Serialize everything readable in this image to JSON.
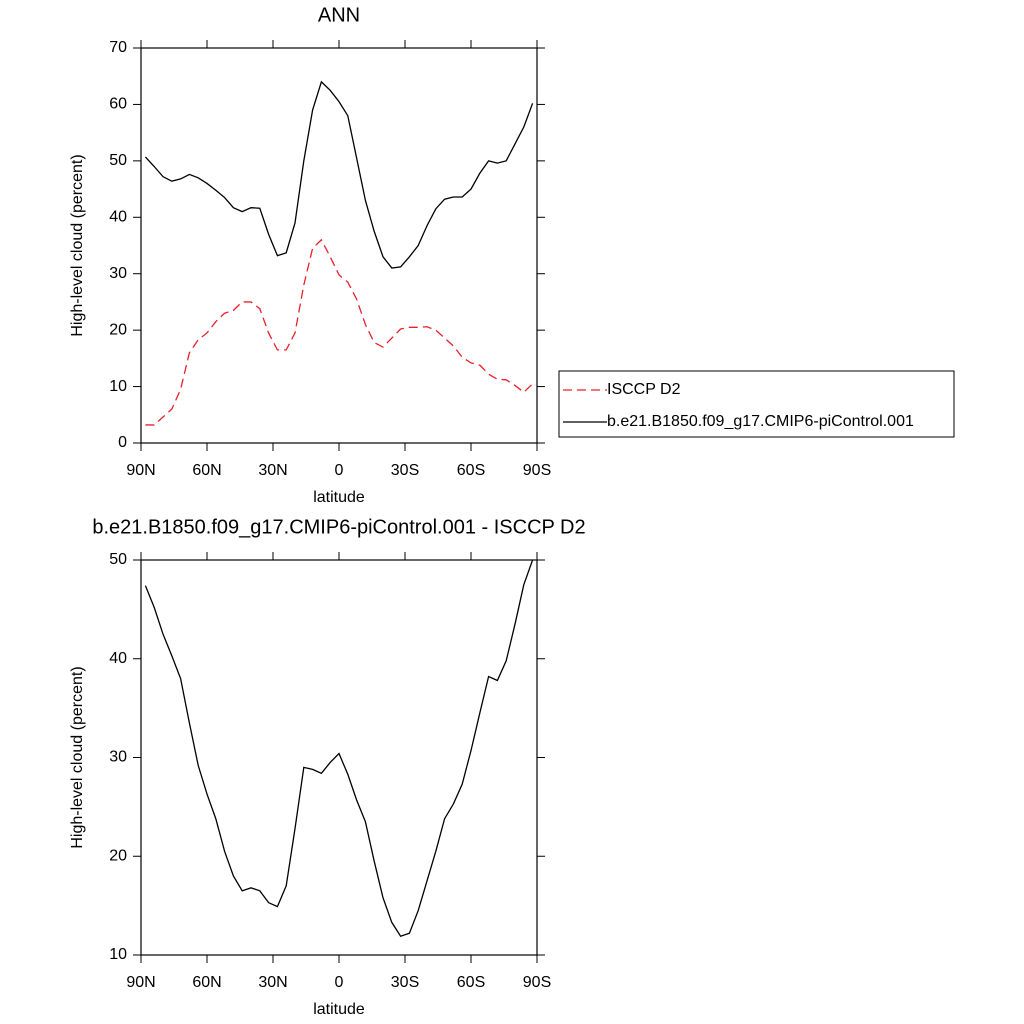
{
  "chart_data": [
    {
      "type": "line",
      "title": "ANN",
      "xlabel": "latitude",
      "ylabel": "High-level cloud (percent)",
      "x": [
        88,
        84,
        80,
        76,
        72,
        68,
        64,
        60,
        56,
        52,
        48,
        44,
        40,
        36,
        32,
        28,
        24,
        20,
        16,
        12,
        8,
        4,
        0,
        -4,
        -8,
        -12,
        -16,
        -20,
        -24,
        -28,
        -32,
        -36,
        -40,
        -44,
        -48,
        -52,
        -56,
        -60,
        -64,
        -68,
        -72,
        -76,
        -80,
        -84,
        -88
      ],
      "series": [
        {
          "name": "ISCCP D2",
          "color": "#e8202a",
          "line_style": "dashed",
          "values": [
            3.2,
            3.2,
            4.6,
            6.0,
            9.5,
            16,
            18.3,
            19.5,
            21.5,
            23,
            23.5,
            25,
            25,
            23.8,
            19.5,
            16.5,
            16.5,
            19.5,
            28,
            34.5,
            36,
            33,
            29.8,
            28.5,
            25.5,
            21,
            17.8,
            17,
            18.6,
            20.2,
            20.5,
            20.5,
            20.6,
            20,
            18.6,
            17.2,
            15.2,
            14.2,
            13.8,
            12.2,
            11.3,
            11.2,
            10.2,
            9,
            10.5
          ]
        },
        {
          "name": "b.e21.B1850.f09_g17.CMIP6-piControl.001",
          "color": "#000000",
          "line_style": "solid",
          "values": [
            50.7,
            49.0,
            47.2,
            46.4,
            46.8,
            47.6,
            47.0,
            46.0,
            44.8,
            43.5,
            41.7,
            41.0,
            41.7,
            41.6,
            37,
            33.2,
            33.7,
            39,
            50,
            59,
            64,
            62.5,
            60.5,
            58,
            50.5,
            43,
            37.5,
            33,
            31,
            31.2,
            33,
            35,
            38.5,
            41.5,
            43.2,
            43.6,
            43.6,
            45,
            47.8,
            50,
            49.6,
            50,
            53,
            56,
            60.2
          ]
        }
      ],
      "xlim": [
        90,
        -90
      ],
      "xticks": [
        {
          "value": 90,
          "label": "90N"
        },
        {
          "value": 60,
          "label": "60N"
        },
        {
          "value": 30,
          "label": "30N"
        },
        0,
        {
          "value": -30,
          "label": "30S"
        },
        {
          "value": -60,
          "label": "60S"
        },
        {
          "value": -90,
          "label": "90S"
        }
      ],
      "ylim": [
        0,
        70
      ],
      "yticks": [
        0,
        10,
        20,
        30,
        40,
        50,
        60,
        70
      ],
      "legend": "right"
    },
    {
      "type": "line",
      "title": "b.e21.B1850.f09_g17.CMIP6-piControl.001 - ISCCP D2",
      "xlabel": "latitude",
      "ylabel": "High-level cloud (percent)",
      "x": [
        88,
        84,
        80,
        76,
        72,
        68,
        64,
        60,
        56,
        52,
        48,
        44,
        40,
        36,
        32,
        28,
        24,
        20,
        16,
        12,
        8,
        4,
        0,
        -4,
        -8,
        -12,
        -16,
        -20,
        -24,
        -28,
        -32,
        -36,
        -40,
        -44,
        -48,
        -52,
        -56,
        -60,
        -64,
        -68,
        -72,
        -76,
        -80,
        -84,
        -88
      ],
      "values": [
        47.4,
        45.2,
        42.5,
        40.3,
        38,
        33.5,
        29.2,
        26.3,
        23.8,
        20.5,
        18,
        16.5,
        16.8,
        16.5,
        15.3,
        14.9,
        17,
        22.8,
        29,
        28.8,
        28.4,
        29.5,
        30.4,
        28.3,
        25.7,
        23.5,
        19.5,
        15.8,
        13.3,
        11.9,
        12.2,
        14.5,
        17.5,
        20.5,
        23.8,
        25.3,
        27.3,
        30.7,
        34.5,
        38.2,
        37.8,
        39.8,
        43.5,
        47.5,
        50
      ],
      "color": "#000000",
      "xlim": [
        90,
        -90
      ],
      "xticks": [
        {
          "value": 90,
          "label": "90N"
        },
        {
          "value": 60,
          "label": "60N"
        },
        {
          "value": 30,
          "label": "30N"
        },
        0,
        {
          "value": -30,
          "label": "30S"
        },
        {
          "value": -60,
          "label": "60S"
        },
        {
          "value": -90,
          "label": "90S"
        }
      ],
      "ylim": [
        10,
        50
      ],
      "yticks": [
        10,
        20,
        30,
        40,
        50
      ]
    }
  ]
}
